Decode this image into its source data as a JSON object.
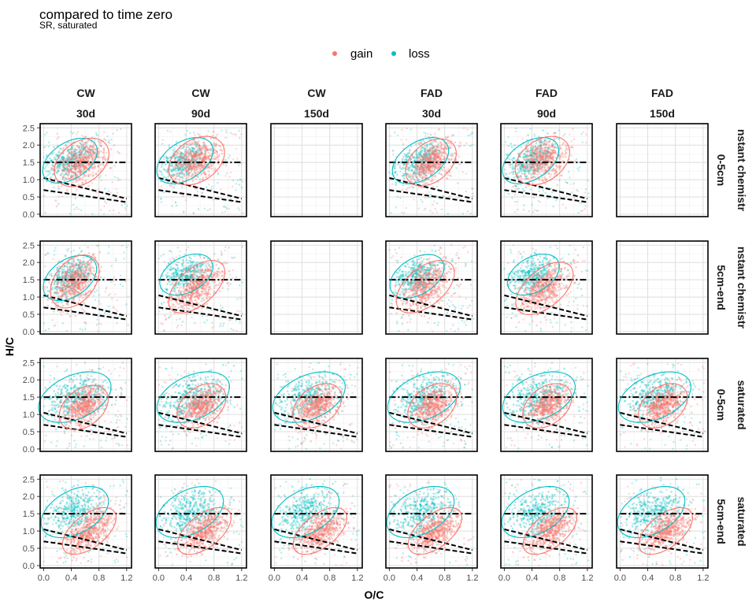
{
  "title": "compared to time zero",
  "subtitle": "SR, saturated",
  "chart_data": {
    "type": "scatter",
    "title": "compared to time zero",
    "subtitle": "SR, saturated",
    "xlabel": "O/C",
    "ylabel": "H/C",
    "xlim": [
      -0.05,
      1.27
    ],
    "ylim": [
      -0.07,
      2.62
    ],
    "x_ticks": [
      0.0,
      0.4,
      0.8,
      1.2
    ],
    "x_tick_labels": [
      "0.0",
      "0.4",
      "0.8",
      "1.2"
    ],
    "y_ticks": [
      0.0,
      0.5,
      1.0,
      1.5,
      2.0,
      2.5
    ],
    "y_tick_labels": [
      "0.0",
      "0.5",
      "1.0",
      "1.5",
      "2.0",
      "2.5"
    ],
    "grid": true,
    "legend": {
      "position": "top",
      "entries": [
        {
          "label": "gain",
          "color": "#F8766D"
        },
        {
          "label": "loss",
          "color": "#00BFC4"
        }
      ]
    },
    "column_facets": [
      {
        "line1": "CW",
        "line2": "30d"
      },
      {
        "line1": "CW",
        "line2": "90d"
      },
      {
        "line1": "CW",
        "line2": "150d"
      },
      {
        "line1": "FAD",
        "line2": "30d"
      },
      {
        "line1": "FAD",
        "line2": "90d"
      },
      {
        "line1": "FAD",
        "line2": "150d"
      }
    ],
    "row_facets": [
      {
        "line1": "nstant chemistr",
        "line2": "0-5cm"
      },
      {
        "line1": "nstant chemistr",
        "line2": "5cm-end"
      },
      {
        "line1": "saturated",
        "line2": "0-5cm"
      },
      {
        "line1": "saturated",
        "line2": "5cm-end"
      }
    ],
    "reference_lines": [
      {
        "style": "dashdot",
        "x": [
          0.0,
          1.2
        ],
        "y": [
          1.5,
          1.5
        ]
      },
      {
        "style": "dashed",
        "x": [
          0.0,
          1.2
        ],
        "y": [
          1.05,
          0.45
        ]
      },
      {
        "style": "dashed",
        "x": [
          0.0,
          1.2
        ],
        "y": [
          0.7,
          0.35
        ]
      }
    ],
    "panels": [
      {
        "row": 0,
        "col": 0,
        "empty": false,
        "gain_ellipse": {
          "cx": 0.55,
          "cy": 1.5,
          "rx": 0.36,
          "ry": 0.72,
          "angle": -15
        },
        "loss_ellipse": {
          "cx": 0.38,
          "cy": 1.55,
          "rx": 0.34,
          "ry": 0.68,
          "angle": -20
        }
      },
      {
        "row": 0,
        "col": 1,
        "empty": false,
        "gain_ellipse": {
          "cx": 0.55,
          "cy": 1.55,
          "rx": 0.37,
          "ry": 0.72,
          "angle": -15
        },
        "loss_ellipse": {
          "cx": 0.38,
          "cy": 1.55,
          "rx": 0.35,
          "ry": 0.7,
          "angle": -20
        }
      },
      {
        "row": 0,
        "col": 2,
        "empty": true
      },
      {
        "row": 0,
        "col": 3,
        "empty": false,
        "gain_ellipse": {
          "cx": 0.6,
          "cy": 1.5,
          "rx": 0.33,
          "ry": 0.7,
          "angle": -15
        },
        "loss_ellipse": {
          "cx": 0.45,
          "cy": 1.55,
          "rx": 0.35,
          "ry": 0.7,
          "angle": -20
        }
      },
      {
        "row": 0,
        "col": 4,
        "empty": false,
        "gain_ellipse": {
          "cx": 0.55,
          "cy": 1.55,
          "rx": 0.36,
          "ry": 0.72,
          "angle": -15
        },
        "loss_ellipse": {
          "cx": 0.38,
          "cy": 1.55,
          "rx": 0.35,
          "ry": 0.7,
          "angle": -20
        }
      },
      {
        "row": 0,
        "col": 5,
        "empty": true
      },
      {
        "row": 1,
        "col": 0,
        "empty": false,
        "gain_ellipse": {
          "cx": 0.45,
          "cy": 1.45,
          "rx": 0.32,
          "ry": 0.78,
          "angle": -12
        },
        "loss_ellipse": {
          "cx": 0.38,
          "cy": 1.55,
          "rx": 0.34,
          "ry": 0.68,
          "angle": -18
        }
      },
      {
        "row": 1,
        "col": 1,
        "empty": false,
        "gain_ellipse": {
          "cx": 0.55,
          "cy": 1.3,
          "rx": 0.32,
          "ry": 0.8,
          "angle": -20
        },
        "loss_ellipse": {
          "cx": 0.4,
          "cy": 1.65,
          "rx": 0.34,
          "ry": 0.62,
          "angle": -20
        }
      },
      {
        "row": 1,
        "col": 2,
        "empty": true
      },
      {
        "row": 1,
        "col": 3,
        "empty": false,
        "gain_ellipse": {
          "cx": 0.52,
          "cy": 1.3,
          "rx": 0.34,
          "ry": 0.8,
          "angle": -20
        },
        "loss_ellipse": {
          "cx": 0.4,
          "cy": 1.6,
          "rx": 0.34,
          "ry": 0.66,
          "angle": -20
        }
      },
      {
        "row": 1,
        "col": 4,
        "empty": false,
        "gain_ellipse": {
          "cx": 0.58,
          "cy": 1.25,
          "rx": 0.33,
          "ry": 0.8,
          "angle": -20
        },
        "loss_ellipse": {
          "cx": 0.42,
          "cy": 1.65,
          "rx": 0.33,
          "ry": 0.62,
          "angle": -20
        }
      },
      {
        "row": 1,
        "col": 5,
        "empty": true
      },
      {
        "row": 2,
        "col": 0,
        "empty": false,
        "gain_ellipse": {
          "cx": 0.58,
          "cy": 1.2,
          "rx": 0.32,
          "ry": 0.66,
          "angle": -15
        },
        "loss_ellipse": {
          "cx": 0.45,
          "cy": 1.5,
          "rx": 0.45,
          "ry": 0.78,
          "angle": -25
        }
      },
      {
        "row": 2,
        "col": 1,
        "empty": false,
        "gain_ellipse": {
          "cx": 0.62,
          "cy": 1.25,
          "rx": 0.32,
          "ry": 0.66,
          "angle": -15
        },
        "loss_ellipse": {
          "cx": 0.5,
          "cy": 1.5,
          "rx": 0.45,
          "ry": 0.78,
          "angle": -25
        }
      },
      {
        "row": 2,
        "col": 2,
        "empty": false,
        "gain_ellipse": {
          "cx": 0.62,
          "cy": 1.25,
          "rx": 0.32,
          "ry": 0.66,
          "angle": -15
        },
        "loss_ellipse": {
          "cx": 0.5,
          "cy": 1.5,
          "rx": 0.45,
          "ry": 0.78,
          "angle": -25
        }
      },
      {
        "row": 2,
        "col": 3,
        "empty": false,
        "gain_ellipse": {
          "cx": 0.62,
          "cy": 1.25,
          "rx": 0.32,
          "ry": 0.66,
          "angle": -15
        },
        "loss_ellipse": {
          "cx": 0.5,
          "cy": 1.5,
          "rx": 0.45,
          "ry": 0.78,
          "angle": -25
        }
      },
      {
        "row": 2,
        "col": 4,
        "empty": false,
        "gain_ellipse": {
          "cx": 0.62,
          "cy": 1.25,
          "rx": 0.32,
          "ry": 0.66,
          "angle": -15
        },
        "loss_ellipse": {
          "cx": 0.5,
          "cy": 1.5,
          "rx": 0.45,
          "ry": 0.78,
          "angle": -25
        }
      },
      {
        "row": 2,
        "col": 5,
        "empty": false,
        "gain_ellipse": {
          "cx": 0.62,
          "cy": 1.25,
          "rx": 0.32,
          "ry": 0.66,
          "angle": -15
        },
        "loss_ellipse": {
          "cx": 0.5,
          "cy": 1.5,
          "rx": 0.45,
          "ry": 0.78,
          "angle": -25
        }
      },
      {
        "row": 3,
        "col": 0,
        "empty": false,
        "gain_ellipse": {
          "cx": 0.66,
          "cy": 1.0,
          "rx": 0.3,
          "ry": 0.72,
          "angle": -22
        },
        "loss_ellipse": {
          "cx": 0.45,
          "cy": 1.55,
          "rx": 0.42,
          "ry": 0.78,
          "angle": -22
        }
      },
      {
        "row": 3,
        "col": 1,
        "empty": false,
        "gain_ellipse": {
          "cx": 0.66,
          "cy": 1.0,
          "rx": 0.3,
          "ry": 0.72,
          "angle": -22
        },
        "loss_ellipse": {
          "cx": 0.45,
          "cy": 1.55,
          "rx": 0.42,
          "ry": 0.78,
          "angle": -22
        }
      },
      {
        "row": 3,
        "col": 2,
        "empty": false,
        "gain_ellipse": {
          "cx": 0.66,
          "cy": 1.0,
          "rx": 0.3,
          "ry": 0.72,
          "angle": -22
        },
        "loss_ellipse": {
          "cx": 0.45,
          "cy": 1.55,
          "rx": 0.42,
          "ry": 0.78,
          "angle": -22
        }
      },
      {
        "row": 3,
        "col": 3,
        "empty": false,
        "gain_ellipse": {
          "cx": 0.66,
          "cy": 1.0,
          "rx": 0.3,
          "ry": 0.72,
          "angle": -22
        },
        "loss_ellipse": {
          "cx": 0.45,
          "cy": 1.55,
          "rx": 0.42,
          "ry": 0.78,
          "angle": -22
        }
      },
      {
        "row": 3,
        "col": 4,
        "empty": false,
        "gain_ellipse": {
          "cx": 0.66,
          "cy": 1.0,
          "rx": 0.3,
          "ry": 0.72,
          "angle": -22
        },
        "loss_ellipse": {
          "cx": 0.45,
          "cy": 1.55,
          "rx": 0.42,
          "ry": 0.78,
          "angle": -22
        }
      },
      {
        "row": 3,
        "col": 5,
        "empty": false,
        "gain_ellipse": {
          "cx": 0.66,
          "cy": 1.0,
          "rx": 0.3,
          "ry": 0.72,
          "angle": -22
        },
        "loss_ellipse": {
          "cx": 0.45,
          "cy": 1.55,
          "rx": 0.42,
          "ry": 0.78,
          "angle": -22
        }
      }
    ]
  }
}
